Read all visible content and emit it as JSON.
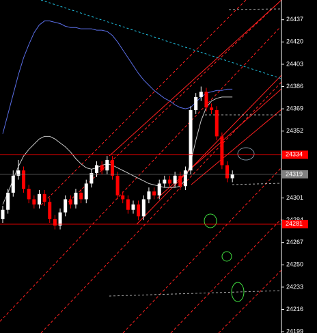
{
  "chart_data": {
    "type": "candlestick",
    "open": [
      24285,
      24292,
      24305,
      24318,
      24322,
      24308,
      24300,
      24296,
      24304,
      24298,
      24285,
      24280,
      24290,
      24300,
      24296,
      24305,
      24300,
      24312,
      24320,
      24326,
      24322,
      24330,
      24318,
      24303,
      24300,
      24292,
      24296,
      24287,
      24300,
      24306,
      24303,
      24312,
      24315,
      24312,
      24318,
      24310,
      24322,
      24368,
      24378,
      24382,
      24370,
      24368,
      24348,
      24326,
      24316
    ],
    "high": [
      24295,
      24308,
      24322,
      24330,
      24325,
      24311,
      24303,
      24307,
      24307,
      24301,
      24288,
      24293,
      24303,
      24303,
      24308,
      24308,
      24315,
      24323,
      24329,
      24329,
      24333,
      24333,
      24321,
      24306,
      24303,
      24299,
      24299,
      24303,
      24309,
      24309,
      24315,
      24318,
      24318,
      24321,
      24321,
      24325,
      24371,
      24381,
      24386,
      24385,
      24373,
      24371,
      24351,
      24329,
      24322
    ],
    "low": [
      24282,
      24289,
      24302,
      24315,
      24305,
      24297,
      24293,
      24293,
      24295,
      24282,
      24277,
      24277,
      24287,
      24293,
      24293,
      24297,
      24297,
      24309,
      24317,
      24319,
      24319,
      24315,
      24300,
      24297,
      24289,
      24289,
      24284,
      24284,
      24297,
      24300,
      24300,
      24309,
      24309,
      24309,
      24307,
      24307,
      24319,
      24365,
      24375,
      24367,
      24365,
      24345,
      24323,
      24313,
      24313
    ],
    "close": [
      24292,
      24305,
      24318,
      24322,
      24308,
      24300,
      24296,
      24304,
      24298,
      24285,
      24280,
      24290,
      24300,
      24296,
      24305,
      24300,
      24312,
      24320,
      24326,
      24322,
      24330,
      24318,
      24303,
      24300,
      24292,
      24296,
      24287,
      24300,
      24306,
      24303,
      24312,
      24315,
      24312,
      24318,
      24310,
      24322,
      24368,
      24378,
      24382,
      24370,
      24368,
      24348,
      24326,
      24316,
      24319
    ],
    "up_color": "#ffffff",
    "down_color": "#ff0000",
    "series": [
      {
        "color": "#5a6ee6",
        "values": [
          24350,
          24365,
          24380,
          24395,
          24408,
          24418,
          24427,
          24433,
          24436,
          24436,
          24435,
          24434,
          24432,
          24431,
          24431,
          24430,
          24430,
          24430,
          24429,
          24429,
          24428,
          24425,
          24420,
          24414,
          24408,
          24402,
          24396,
          24391,
          24387,
          24383,
          24380,
          24377,
          24375,
          24372,
          24370,
          24369,
          24370,
          24374,
          24378,
          24381,
          24382,
          24383,
          24383,
          24384,
          24384
        ]
      },
      {
        "color": "#c8c8c8",
        "values": [
          24296,
          24305,
          24315,
          24325,
          24333,
          24338,
          24342,
          24346,
          24348,
          24348,
          24346,
          24343,
          24340,
          24336,
          24331,
          24327,
          24324,
          24323,
          24324,
          24326,
          24327,
          24326,
          24324,
          24322,
          24320,
          24318,
          24316,
          24314,
          24312,
          24311,
          24310,
          24309,
          24309,
          24309,
          24310,
          24315,
          24328,
          24345,
          24360,
          24370,
          24375,
          24377,
          24378,
          24378,
          24378
        ]
      }
    ],
    "ylim": [
      24198,
      24452
    ],
    "yticks": [
      24437,
      24420,
      24403,
      24386,
      24369,
      24352,
      24301,
      24284,
      24267,
      24250,
      24233,
      24216,
      24199
    ],
    "price_lines": [
      {
        "value": 24334,
        "color": "#ff0000"
      },
      {
        "value": 24319,
        "color": "#808080"
      },
      {
        "value": 24281,
        "color": "#ff0000"
      }
    ]
  }
}
